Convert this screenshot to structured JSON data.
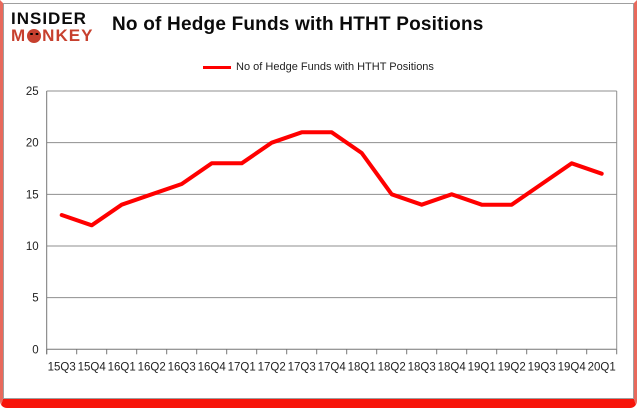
{
  "logo": {
    "line1": "INSIDER",
    "monkey_pre": "M",
    "monkey_o": "O",
    "monkey_post": "NKEY"
  },
  "header": {
    "title": "No of Hedge Funds with HTHT Positions"
  },
  "legend": {
    "label": "No of Hedge Funds with HTHT Positions"
  },
  "colors": {
    "accent_red": "#FF0000",
    "logo_red": "#C7402E",
    "border_red": "#F7140A",
    "border_side": "#E8695C",
    "grid_gray": "#8F8F8F",
    "axis_gray": "#767676",
    "text": "#1F1F1F"
  },
  "chart_data": {
    "type": "line",
    "title": "No of Hedge Funds with HTHT Positions",
    "series_name": "No of Hedge Funds with HTHT Positions",
    "categories": [
      "15Q3",
      "15Q4",
      "16Q1",
      "16Q2",
      "16Q3",
      "16Q4",
      "17Q1",
      "17Q2",
      "17Q3",
      "17Q4",
      "18Q1",
      "18Q2",
      "18Q3",
      "18Q4",
      "19Q1",
      "19Q2",
      "19Q3",
      "19Q4",
      "20Q1"
    ],
    "values": [
      13,
      12,
      14,
      15,
      16,
      18,
      18,
      20,
      21,
      21,
      19,
      15,
      14,
      15,
      14,
      14,
      16,
      18,
      17
    ],
    "ylim": [
      0,
      25
    ],
    "yticks": [
      0,
      5,
      10,
      15,
      20,
      25
    ],
    "grid": "on",
    "legend_position": "top-center",
    "xlabel": "",
    "ylabel": "",
    "line_color": "#FF0000",
    "line_width": 4,
    "grid_color": "#8F8F8F"
  }
}
